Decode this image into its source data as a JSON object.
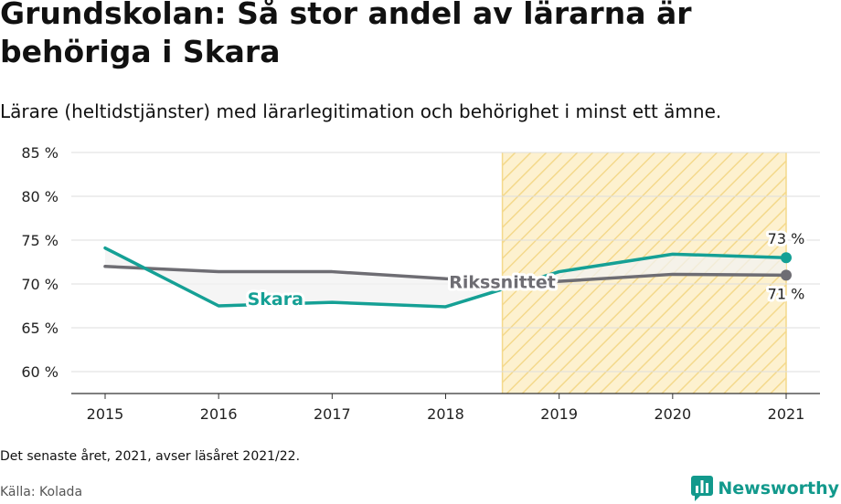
{
  "title": "Grundskolan: Så stor andel av lärarna är behöriga i Skara",
  "subtitle": "Lärare (heltidstjänster) med lärarlegitimation och behörighet i minst ett ämne.",
  "footnote": "Det senaste året, 2021, avser läsåret 2021/22.",
  "source": "Källa: Kolada",
  "logo": {
    "text": "Newsworthy",
    "icon": "newsworthy-chart-icon"
  },
  "colors": {
    "skara": "#15a095",
    "riket": "#6e6d73",
    "highlight_fill": "#fdf1cf",
    "highlight_stripe": "#f4d98c",
    "grid": "#dddddd",
    "fill_between": "#f2f2f2"
  },
  "chart_data": {
    "type": "line",
    "x": [
      "2015",
      "2016",
      "2017",
      "2018",
      "2019",
      "2020",
      "2021"
    ],
    "ylim": [
      57.5,
      85
    ],
    "yticks": [
      60,
      65,
      70,
      75,
      80,
      85
    ],
    "ytick_labels": [
      "60 %",
      "65 %",
      "70 %",
      "75 %",
      "80 %",
      "85 %"
    ],
    "highlight_range": [
      "2019",
      "2021"
    ],
    "series": [
      {
        "name": "Skara",
        "values": [
          74.1,
          67.5,
          67.9,
          67.4,
          71.4,
          73.4,
          73.0
        ],
        "end_label": "73 %"
      },
      {
        "name": "Rikssnittet",
        "values": [
          72.0,
          71.4,
          71.4,
          70.6,
          70.3,
          71.1,
          71.0
        ],
        "end_label": "71 %"
      }
    ]
  }
}
